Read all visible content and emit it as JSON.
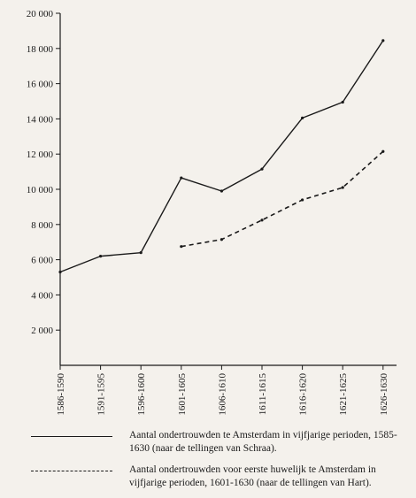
{
  "chart_data": {
    "type": "line",
    "categories": [
      "1586-1590",
      "1591-1595",
      "1596-1600",
      "1601-1605",
      "1606-1610",
      "1611-1615",
      "1616-1620",
      "1621-1625",
      "1626-1630"
    ],
    "yticks": [
      "2 000",
      "4 000",
      "6 000",
      "8 000",
      "10 000",
      "12 000",
      "14 000",
      "16 000",
      "18 000",
      "20 000"
    ],
    "ylim": [
      0,
      20000
    ],
    "grid": false,
    "series": [
      {
        "name": "Aantal ondertrouwden te Amsterdam in vijfjarige perioden, 1585-1630 (naar de tellingen van Schraa).",
        "style": "solid",
        "values": [
          5300,
          6200,
          6400,
          10650,
          9900,
          11150,
          14050,
          14950,
          18450
        ]
      },
      {
        "name": "Aantal ondertrouwden voor eerste huwelijk te Amsterdam in vijfjarige perioden, 1601-1630 (naar de tellingen van Hart).",
        "style": "dashed",
        "values": [
          null,
          null,
          null,
          6750,
          7150,
          8250,
          9400,
          10100,
          12150
        ]
      }
    ]
  },
  "colors": {
    "line": "#1a1a1a",
    "background": "#f4f1ec"
  }
}
